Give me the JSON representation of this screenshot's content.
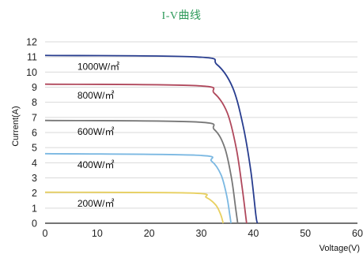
{
  "chart_data": {
    "type": "line",
    "title": "I-V曲线",
    "xlabel": "Voltage(V)",
    "ylabel": "Current(A)",
    "xlim": [
      0,
      60
    ],
    "ylim": [
      0,
      12
    ],
    "xticks": [
      "0",
      "10",
      "20",
      "30",
      "40",
      "50",
      "60"
    ],
    "yticks": [
      "0",
      "1",
      "2",
      "3",
      "4",
      "5",
      "6",
      "7",
      "8",
      "9",
      "10",
      "11",
      "12"
    ],
    "grid": "horizontal",
    "title_color": "#2e9a5a",
    "series": [
      {
        "name": "1000W/㎡",
        "color": "#283d8f",
        "x": [
          0,
          29,
          33,
          36,
          38,
          39.5,
          40.5,
          40.8
        ],
        "y": [
          11.1,
          11.0,
          10.5,
          9.0,
          6.5,
          3.5,
          0.5,
          0
        ]
      },
      {
        "name": "800W/㎡",
        "color": "#b0485c",
        "x": [
          0,
          29,
          32.5,
          35,
          36.7,
          37.8,
          38.6,
          38.7
        ],
        "y": [
          9.2,
          9.1,
          8.6,
          7.3,
          5.0,
          2.5,
          0.3,
          0
        ]
      },
      {
        "name": "600W/㎡",
        "color": "#777777",
        "x": [
          0,
          29,
          32.5,
          34.5,
          35.8,
          36.6,
          37.0
        ],
        "y": [
          6.8,
          6.7,
          6.2,
          5.0,
          3.0,
          1.0,
          0
        ]
      },
      {
        "name": "400W/㎡",
        "color": "#7bb8e2",
        "x": [
          0,
          29,
          32,
          33.8,
          34.9,
          35.5,
          35.7
        ],
        "y": [
          4.6,
          4.5,
          4.1,
          3.2,
          1.8,
          0.5,
          0
        ]
      },
      {
        "name": "200W/㎡",
        "color": "#e8d060",
        "x": [
          0,
          28,
          31,
          32.8,
          33.7,
          34.1,
          34.2
        ],
        "y": [
          2.05,
          2.0,
          1.7,
          1.2,
          0.6,
          0.15,
          0
        ]
      }
    ]
  }
}
